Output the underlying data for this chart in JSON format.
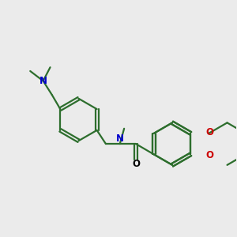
{
  "bg_color": "#ebebeb",
  "bond_color": "#2d6e2d",
  "n_color": "#0000cc",
  "o_color": "#cc0000",
  "line_width": 1.6,
  "figsize": [
    3.0,
    3.0
  ],
  "dpi": 100,
  "xlim": [
    0,
    10
  ],
  "ylim": [
    0,
    10
  ]
}
